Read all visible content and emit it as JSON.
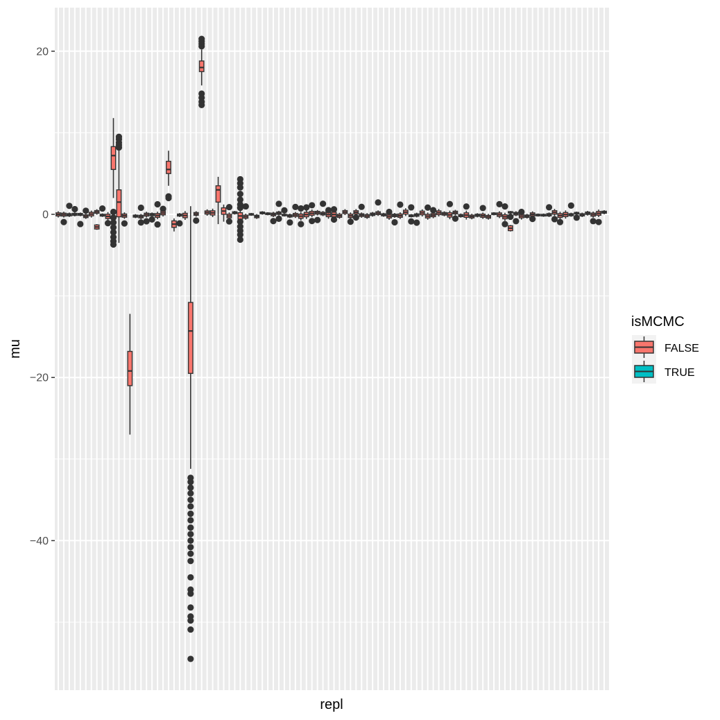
{
  "chart_data": {
    "type": "boxplot",
    "xlabel": "repl",
    "ylabel": "mu",
    "ylim": [
      -58,
      25
    ],
    "y_ticks": [
      20,
      0,
      -20,
      -40
    ],
    "y_minor_ticks": [
      10,
      -10,
      -30,
      -50
    ],
    "x_tick_labels": "none",
    "n_categories": 100,
    "grid": true,
    "legend": {
      "title": "isMCMC",
      "position": "right",
      "entries": [
        {
          "label": "FALSE",
          "color": "#F8766D"
        },
        {
          "label": "TRUE",
          "color": "#00BFC4"
        }
      ]
    },
    "colors": {
      "panel_background": "#EBEBEB",
      "grid": "#FFFFFF",
      "box_outline": "#333333",
      "false_fill": "#F8766D",
      "true_fill": "#00BFC4"
    },
    "notable_boxes": [
      {
        "repl": 10,
        "q1": 5.5,
        "median": 7.2,
        "q3": 8.3,
        "whisker_low": 2.0,
        "whisker_high": 11.8,
        "outliers": [
          0.3,
          -0.4,
          -1.0,
          -1.6,
          -2.2,
          -2.8,
          -3.3,
          -3.7
        ]
      },
      {
        "repl": 11,
        "q1": -0.3,
        "median": 1.5,
        "q3": 3.0,
        "whisker_low": -3.5,
        "whisker_high": 8.0,
        "outliers": [
          8.2,
          8.5,
          8.8,
          9.2,
          9.5
        ]
      },
      {
        "repl": 13,
        "q1": -21.0,
        "median": -19.2,
        "q3": -16.8,
        "whisker_low": -27.0,
        "whisker_high": -12.2,
        "outliers": []
      },
      {
        "repl": 20,
        "q1": 5.0,
        "median": 5.5,
        "q3": 6.5,
        "whisker_low": 3.5,
        "whisker_high": 7.8,
        "outliers": [
          2.0,
          2.2
        ]
      },
      {
        "repl": 21,
        "q1": -1.6,
        "median": -1.2,
        "q3": -0.8,
        "whisker_low": -2.1,
        "whisker_high": -0.5,
        "outliers": []
      },
      {
        "repl": 24,
        "q1": -19.5,
        "median": -14.3,
        "q3": -10.8,
        "whisker_low": -31.2,
        "whisker_high": 1.0,
        "outliers": [
          -32.3,
          -32.8,
          -33.5,
          -34.2,
          -35.0,
          -35.8,
          -36.7,
          -37.5,
          -38.4,
          -39.2,
          -40.0,
          -40.8,
          -41.6,
          -42.5,
          -44.5,
          -46.0,
          -46.5,
          -48.2,
          -49.3,
          -49.8,
          -50.9,
          -54.5
        ]
      },
      {
        "repl": 26,
        "q1": 17.5,
        "median": 18.0,
        "q3": 18.8,
        "whisker_low": 15.8,
        "whisker_high": 20.2,
        "outliers": [
          20.6,
          20.9,
          21.2,
          21.5,
          14.8,
          14.3,
          13.8,
          13.4
        ]
      },
      {
        "repl": 29,
        "q1": 1.5,
        "median": 3.0,
        "q3": 3.5,
        "whisker_low": -1.2,
        "whisker_high": 4.6,
        "outliers": []
      },
      {
        "repl": 30,
        "q1": 0.0,
        "median": 0.4,
        "q3": 0.8,
        "whisker_low": -0.9,
        "whisker_high": 1.2,
        "outliers": []
      },
      {
        "repl": 33,
        "q1": -0.6,
        "median": -0.2,
        "q3": 0.2,
        "whisker_low": -1.0,
        "whisker_high": 0.6,
        "outliers": [
          4.3,
          3.8,
          3.3,
          2.5,
          1.8,
          1.2,
          0.8,
          -0.9,
          -1.5,
          -2.0,
          -2.5,
          -3.1
        ]
      }
    ]
  }
}
